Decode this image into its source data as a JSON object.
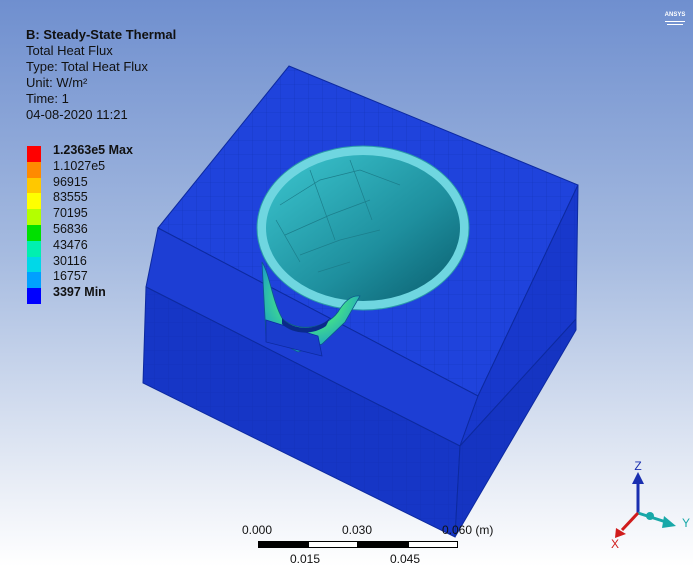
{
  "analysis": {
    "title": "B: Steady-State Thermal",
    "result": "Total Heat Flux",
    "type": "Type: Total Heat Flux",
    "unit": "Unit: W/m²",
    "time": "Time: 1",
    "date": "04-08-2020 11:21"
  },
  "legend": {
    "labels": [
      "1.2363e5 Max",
      "1.1027e5",
      "96915",
      "83555",
      "70195",
      "56836",
      "43476",
      "30116",
      "16757",
      "3397 Min"
    ],
    "colors": [
      "#ff0000",
      "#ff8a00",
      "#ffc800",
      "#ffff00",
      "#b4ff00",
      "#00e000",
      "#00f0b0",
      "#00d8e8",
      "#00a0ff",
      "#0000ff"
    ]
  },
  "logo_text": "ANSYS",
  "scale_bar": {
    "top_labels": [
      "0.000",
      "0.030",
      "0.060 (m)"
    ],
    "bottom_labels": [
      "0.015",
      "0.045"
    ]
  },
  "triad": {
    "x": "X",
    "y": "Y",
    "z": "Z"
  },
  "colors": {
    "model_blue": "#1a3fd6",
    "model_side": "#1633c4",
    "cavity": "#2fb8c8",
    "rim": "#6fd6e0"
  }
}
